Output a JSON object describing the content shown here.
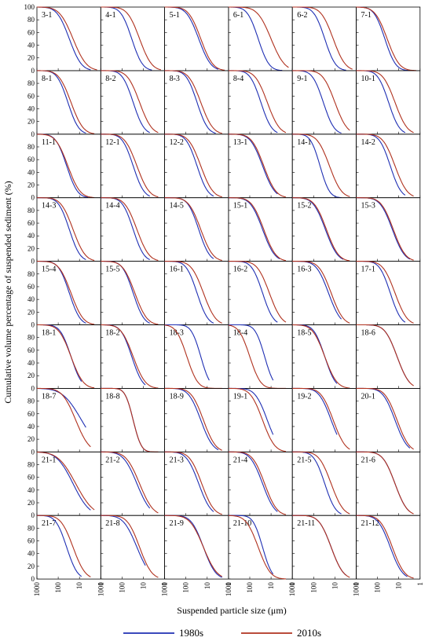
{
  "chart_data": {
    "type": "line",
    "ylabel": "Cumulative volume percentage of suspended sediment (%)",
    "xlabel": "Suspended particle size (μm)",
    "x_scale": "log",
    "x_reversed": true,
    "xlim": [
      1000,
      1
    ],
    "ylim": [
      0,
      100
    ],
    "x_ticks": [
      "1000",
      "100",
      "10",
      "1"
    ],
    "y_ticks": [
      "0",
      "20",
      "40",
      "60",
      "80",
      "100"
    ],
    "grid": false,
    "legend_position": "bottom",
    "series": [
      {
        "name": "1980s",
        "color": "#1f2fb3"
      },
      {
        "name": "2010s",
        "color": "#b0321f"
      }
    ],
    "panels": [
      {
        "label": "3-1",
        "p1980": {
          "d50": 30,
          "s": 0.45,
          "end": 3
        },
        "p2010": {
          "d50": 20,
          "s": 0.5,
          "end": 1.5
        }
      },
      {
        "label": "4-1",
        "p1980": {
          "d50": 35,
          "s": 0.4,
          "end": 4
        },
        "p2010": {
          "d50": 15,
          "s": 0.45,
          "end": 1.5
        }
      },
      {
        "label": "5-1",
        "p1980": {
          "d50": 25,
          "s": 0.45,
          "end": 3
        },
        "p2010": {
          "d50": 20,
          "s": 0.45,
          "end": 1.5
        }
      },
      {
        "label": "6-1",
        "p1980": {
          "d50": 40,
          "s": 0.4,
          "end": 3
        },
        "p2010": {
          "d50": 10,
          "s": 0.5,
          "end": 1.5
        }
      },
      {
        "label": "6-2",
        "p1980": {
          "d50": 30,
          "s": 0.4,
          "end": 3
        },
        "p2010": {
          "d50": 12,
          "s": 0.45,
          "end": 1.5
        }
      },
      {
        "label": "7-1",
        "p1980": {
          "d50": 45,
          "s": 0.4,
          "end": 3
        },
        "p2010": {
          "d50": 35,
          "s": 0.45,
          "end": 1.5
        }
      },
      {
        "label": "8-1",
        "p1980": {
          "d50": 35,
          "s": 0.4,
          "end": 5
        },
        "p2010": {
          "d50": 25,
          "s": 0.45,
          "end": 2
        }
      },
      {
        "label": "8-2",
        "p1980": {
          "d50": 30,
          "s": 0.4,
          "end": 5
        },
        "p2010": {
          "d50": 15,
          "s": 0.45,
          "end": 2
        }
      },
      {
        "label": "8-3",
        "p1980": {
          "d50": 30,
          "s": 0.4,
          "end": 4
        },
        "p2010": {
          "d50": 20,
          "s": 0.45,
          "end": 2
        }
      },
      {
        "label": "8-4",
        "p1980": {
          "d50": 30,
          "s": 0.4,
          "end": 5
        },
        "p2010": {
          "d50": 15,
          "s": 0.45,
          "end": 2
        }
      },
      {
        "label": "9-1",
        "p1980": {
          "d50": 35,
          "s": 0.4,
          "end": 5
        },
        "p2010": {
          "d50": 10,
          "s": 0.45,
          "end": 2
        }
      },
      {
        "label": "10-1",
        "p1980": {
          "d50": 30,
          "s": 0.4,
          "end": 5
        },
        "p2010": {
          "d50": 15,
          "s": 0.45,
          "end": 2
        }
      },
      {
        "label": "11-1",
        "p1980": {
          "d50": 40,
          "s": 0.4,
          "end": 4
        },
        "p2010": {
          "d50": 35,
          "s": 0.45,
          "end": 2
        }
      },
      {
        "label": "12-1",
        "p1980": {
          "d50": 30,
          "s": 0.4,
          "end": 5
        },
        "p2010": {
          "d50": 20,
          "s": 0.45,
          "end": 2
        }
      },
      {
        "label": "12-2",
        "p1980": {
          "d50": 30,
          "s": 0.4,
          "end": 5
        },
        "p2010": {
          "d50": 20,
          "s": 0.45,
          "end": 2
        }
      },
      {
        "label": "13-1",
        "p1980": {
          "d50": 25,
          "s": 0.45,
          "end": 5
        },
        "p2010": {
          "d50": 22,
          "s": 0.45,
          "end": 2
        }
      },
      {
        "label": "14-1",
        "p1980": {
          "d50": 50,
          "s": 0.35,
          "end": 5
        },
        "p2010": {
          "d50": 18,
          "s": 0.45,
          "end": 2
        }
      },
      {
        "label": "14-2",
        "p1980": {
          "d50": 25,
          "s": 0.4,
          "end": 5
        },
        "p2010": {
          "d50": 15,
          "s": 0.45,
          "end": 2
        }
      },
      {
        "label": "14-3",
        "p1980": {
          "d50": 30,
          "s": 0.4,
          "end": 5
        },
        "p2010": {
          "d50": 20,
          "s": 0.45,
          "end": 2
        }
      },
      {
        "label": "14-4",
        "p1980": {
          "d50": 30,
          "s": 0.4,
          "end": 5
        },
        "p2010": {
          "d50": 20,
          "s": 0.45,
          "end": 2
        }
      },
      {
        "label": "14-5",
        "p1980": {
          "d50": 25,
          "s": 0.4,
          "end": 5
        },
        "p2010": {
          "d50": 20,
          "s": 0.45,
          "end": 2
        }
      },
      {
        "label": "15-1",
        "p1980": {
          "d50": 25,
          "s": 0.45,
          "end": 4
        },
        "p2010": {
          "d50": 22,
          "s": 0.45,
          "end": 2
        }
      },
      {
        "label": "15-2",
        "p1980": {
          "d50": 28,
          "s": 0.45,
          "end": 4
        },
        "p2010": {
          "d50": 25,
          "s": 0.45,
          "end": 2
        }
      },
      {
        "label": "15-3",
        "p1980": {
          "d50": 20,
          "s": 0.45,
          "end": 3
        },
        "p2010": {
          "d50": 18,
          "s": 0.45,
          "end": 2
        }
      },
      {
        "label": "15-4",
        "p1980": {
          "d50": 30,
          "s": 0.4,
          "end": 5
        },
        "p2010": {
          "d50": 25,
          "s": 0.45,
          "end": 2
        }
      },
      {
        "label": "15-5",
        "p1980": {
          "d50": 30,
          "s": 0.4,
          "end": 5
        },
        "p2010": {
          "d50": 25,
          "s": 0.45,
          "end": 2
        }
      },
      {
        "label": "16-1",
        "p1980": {
          "d50": 30,
          "s": 0.4,
          "end": 5
        },
        "p2010": {
          "d50": 15,
          "s": 0.45,
          "end": 2
        }
      },
      {
        "label": "16-2",
        "p1980": {
          "d50": 25,
          "s": 0.4,
          "end": 5
        },
        "p2010": {
          "d50": 12,
          "s": 0.45,
          "end": 2
        }
      },
      {
        "label": "16-3",
        "p1980": {
          "d50": 20,
          "s": 0.45,
          "end": 5
        },
        "p2010": {
          "d50": 15,
          "s": 0.45,
          "end": 2
        }
      },
      {
        "label": "17-1",
        "p1980": {
          "d50": 25,
          "s": 0.4,
          "end": 5
        },
        "p2010": {
          "d50": 15,
          "s": 0.45,
          "end": 2
        }
      },
      {
        "label": "18-1",
        "p1980": {
          "d50": 25,
          "s": 0.4,
          "end": 8
        },
        "p2010": {
          "d50": 25,
          "s": 0.45,
          "end": 2
        }
      },
      {
        "label": "18-2",
        "p1980": {
          "d50": 35,
          "s": 0.4,
          "end": 8
        },
        "p2010": {
          "d50": 30,
          "s": 0.45,
          "end": 2
        }
      },
      {
        "label": "18-3",
        "p1980": {
          "d50": 20,
          "s": 0.35,
          "end": 8
        },
        "p2010": {
          "d50": 90,
          "s": 0.4,
          "end": 2
        }
      },
      {
        "label": "18-4",
        "p1980": {
          "d50": 20,
          "s": 0.35,
          "end": 8
        },
        "p2010": {
          "d50": 100,
          "s": 0.4,
          "end": 2
        }
      },
      {
        "label": "18-5",
        "p1980": {
          "d50": 30,
          "s": 0.4,
          "end": 8
        },
        "p2010": {
          "d50": 30,
          "s": 0.45,
          "end": 2
        }
      },
      {
        "label": "18-6",
        "p1980": {
          "d50": 12,
          "s": 0.45,
          "end": 3
        },
        "p2010": {
          "d50": 12,
          "s": 0.45,
          "end": 2
        }
      },
      {
        "label": "18-7",
        "p1980": {
          "d50": 8,
          "s": 0.7,
          "end": 5
        },
        "p2010": {
          "d50": 15,
          "s": 0.5,
          "end": 3
        }
      },
      {
        "label": "18-8",
        "p1980": {
          "d50": 30,
          "s": 0.3,
          "end": 5
        },
        "p2010": {
          "d50": 30,
          "s": 0.3,
          "end": 2
        }
      },
      {
        "label": "18-9",
        "p1980": {
          "d50": 20,
          "s": 0.45,
          "end": 3
        },
        "p2010": {
          "d50": 15,
          "s": 0.45,
          "end": 2
        }
      },
      {
        "label": "19-1",
        "p1980": {
          "d50": 15,
          "s": 0.45,
          "end": 8
        },
        "p2010": {
          "d50": 25,
          "s": 0.45,
          "end": 2
        }
      },
      {
        "label": "19-2",
        "p1980": {
          "d50": 15,
          "s": 0.45,
          "end": 8
        },
        "p2010": {
          "d50": 12,
          "s": 0.45,
          "end": 2
        }
      },
      {
        "label": "20-1",
        "p1980": {
          "d50": 15,
          "s": 0.45,
          "end": 3
        },
        "p2010": {
          "d50": 12,
          "s": 0.45,
          "end": 2
        }
      },
      {
        "label": "21-1",
        "p1980": {
          "d50": 20,
          "s": 0.6,
          "end": 3
        },
        "p2010": {
          "d50": 15,
          "s": 0.65,
          "end": 2
        }
      },
      {
        "label": "21-2",
        "p1980": {
          "d50": 20,
          "s": 0.5,
          "end": 5
        },
        "p2010": {
          "d50": 15,
          "s": 0.5,
          "end": 2
        }
      },
      {
        "label": "21-3",
        "p1980": {
          "d50": 25,
          "s": 0.45,
          "end": 5
        },
        "p2010": {
          "d50": 18,
          "s": 0.45,
          "end": 2
        }
      },
      {
        "label": "21-4",
        "p1980": {
          "d50": 25,
          "s": 0.45,
          "end": 5
        },
        "p2010": {
          "d50": 20,
          "s": 0.45,
          "end": 2
        }
      },
      {
        "label": "21-5",
        "p1980": {
          "d50": 30,
          "s": 0.4,
          "end": 5
        },
        "p2010": {
          "d50": 15,
          "s": 0.45,
          "end": 2
        }
      },
      {
        "label": "21-6",
        "p1980": {
          "d50": 15,
          "s": 0.45,
          "end": 3
        },
        "p2010": {
          "d50": 15,
          "s": 0.45,
          "end": 2
        }
      },
      {
        "label": "21-7",
        "p1980": {
          "d50": 40,
          "s": 0.4,
          "end": 8
        },
        "p2010": {
          "d50": 20,
          "s": 0.45,
          "end": 3
        }
      },
      {
        "label": "21-8",
        "p1980": {
          "d50": 20,
          "s": 0.5,
          "end": 8
        },
        "p2010": {
          "d50": 15,
          "s": 0.45,
          "end": 2
        }
      },
      {
        "label": "21-9",
        "p1980": {
          "d50": 15,
          "s": 0.45,
          "end": 2
        },
        "p2010": {
          "d50": 15,
          "s": 0.5,
          "end": 2
        }
      },
      {
        "label": "21-10",
        "p1980": {
          "d50": 25,
          "s": 0.35,
          "end": 8
        },
        "p2010": {
          "d50": 40,
          "s": 0.45,
          "end": 2
        }
      },
      {
        "label": "21-11",
        "p1980": {
          "d50": 15,
          "s": 0.45,
          "end": 3
        },
        "p2010": {
          "d50": 15,
          "s": 0.45,
          "end": 2
        }
      },
      {
        "label": "21-12",
        "p1980": {
          "d50": 25,
          "s": 0.45,
          "end": 4
        },
        "p2010": {
          "d50": 20,
          "s": 0.45,
          "end": 2
        }
      }
    ]
  }
}
